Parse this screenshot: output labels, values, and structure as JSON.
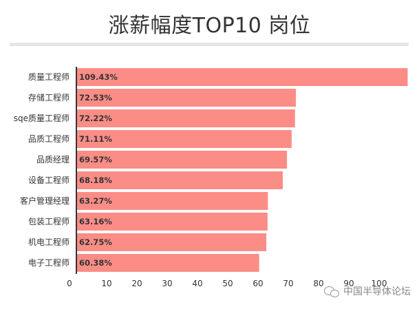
{
  "chart_data": {
    "type": "bar",
    "orientation": "horizontal",
    "title": "涨薪幅度TOP10 岗位",
    "categories": [
      "质量工程师",
      "存储工程师",
      "sqe质量工程师",
      "品质工程师",
      "品质经理",
      "设备工程师",
      "客户管理经理",
      "包装工程师",
      "机电工程师",
      "电子工程师"
    ],
    "values": [
      109.43,
      72.53,
      72.22,
      71.11,
      69.57,
      68.18,
      63.27,
      63.16,
      62.75,
      60.38
    ],
    "value_labels": [
      "109.43%",
      "72.53%",
      "72.22%",
      "71.11%",
      "69.57%",
      "68.18%",
      "63.27%",
      "63.16%",
      "62.75%",
      "60.38%"
    ],
    "xlim": [
      0,
      110
    ],
    "xticks": [
      0,
      10,
      20,
      30,
      40,
      50,
      60,
      70,
      80,
      90,
      100
    ],
    "bar_color": "#fb8d86",
    "grid": false
  },
  "watermark": {
    "text": "中国半导体论坛",
    "icon": "wechat-icon"
  }
}
